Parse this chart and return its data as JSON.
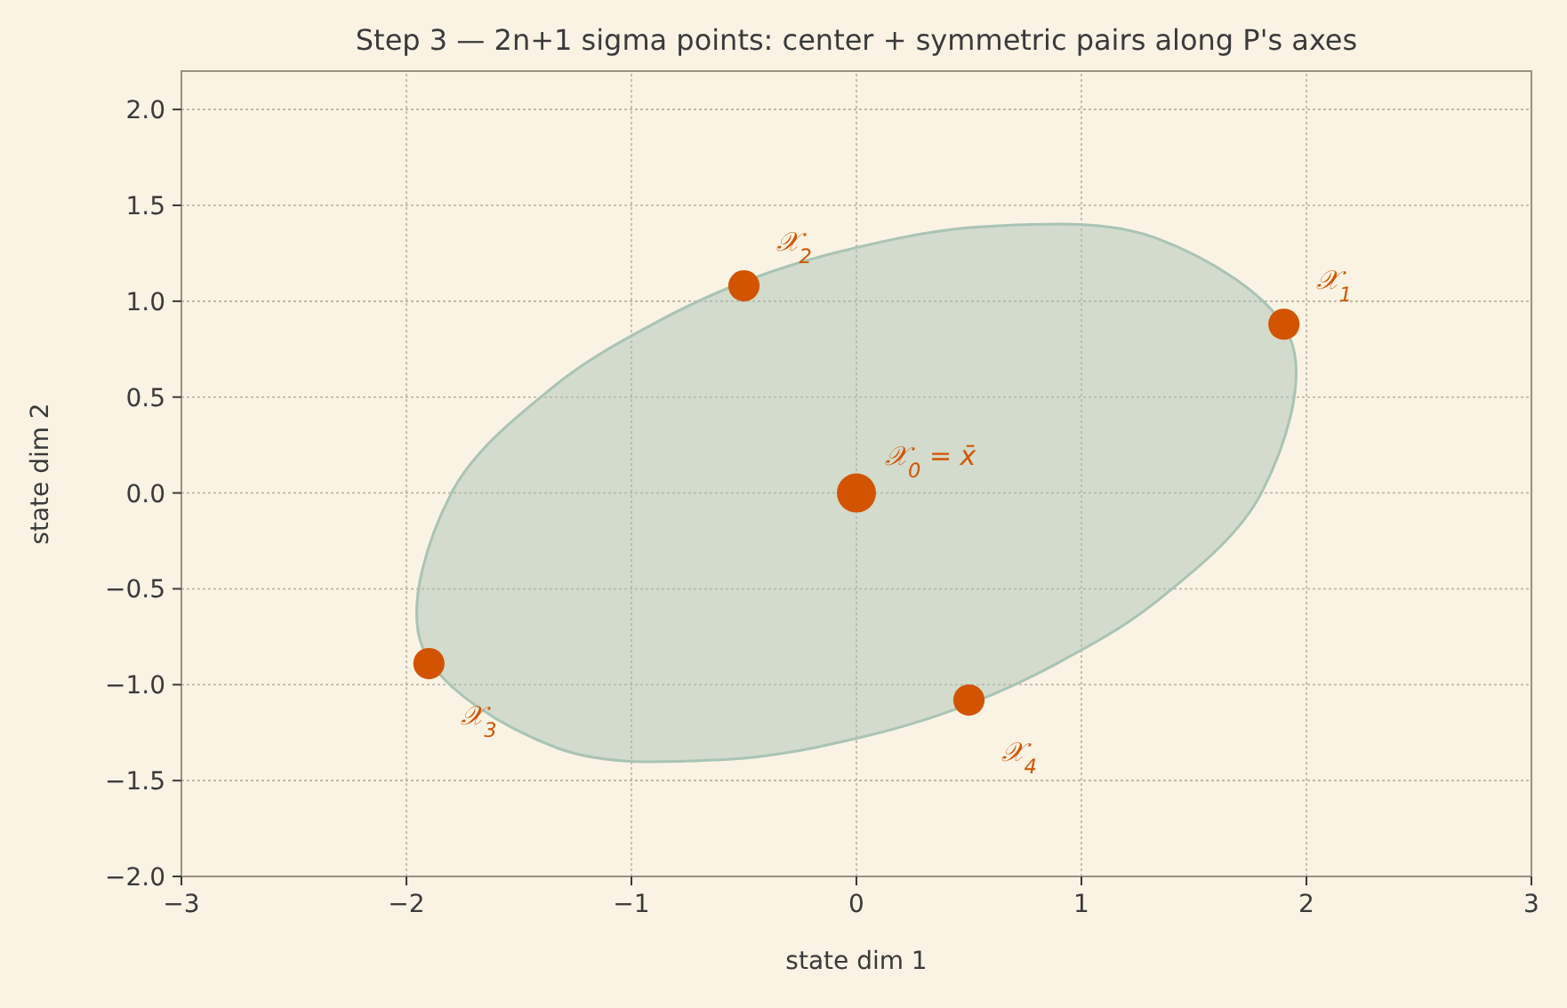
{
  "chart_data": {
    "type": "scatter",
    "title": "Step 3 — 2n+1 sigma points: center + symmetric pairs along P's axes",
    "xlabel": "state dim 1",
    "ylabel": "state dim 2",
    "xlim": [
      -3,
      3
    ],
    "ylim": [
      -2,
      2.2
    ],
    "xticks": [
      {
        "value": -3,
        "label": "−3"
      },
      {
        "value": -2,
        "label": "−2"
      },
      {
        "value": -1,
        "label": "−1"
      },
      0,
      1,
      2,
      3
    ],
    "yticks": [
      {
        "value": -2,
        "label": "−2.0"
      },
      {
        "value": -1.5,
        "label": "−1.5"
      },
      {
        "value": -1,
        "label": "−1.0"
      },
      {
        "value": -0.5,
        "label": "−0.5"
      },
      {
        "value": 0,
        "label": "0.0"
      },
      {
        "value": 0.5,
        "label": "0.5"
      },
      {
        "value": 1,
        "label": "1.0"
      },
      {
        "value": 1.5,
        "label": "1.5"
      },
      {
        "value": 2,
        "label": "2.0"
      }
    ],
    "grid": true,
    "series": [
      {
        "type": "area",
        "color": "#a9c4b4",
        "x": [
          1.8,
          1.93,
          1.33,
          0.58,
          0,
          -0.46,
          -0.89,
          -1.34,
          -1.8,
          -1.93,
          -1.33,
          -0.58,
          0,
          0.46,
          0.89,
          1.34,
          1.8
        ],
        "values": [
          0,
          0.8,
          1.33,
          1.39,
          1.28,
          1.12,
          0.89,
          0.56,
          0,
          -0.8,
          -1.33,
          -1.39,
          -1.28,
          -1.12,
          -0.89,
          -0.56,
          0
        ]
      },
      {
        "type": "bubble",
        "color": "#d35400",
        "x": [
          0,
          1.9,
          -0.5,
          -1.9,
          0.5
        ],
        "values": [
          0,
          0.88,
          1.08,
          -0.89,
          -1.08
        ],
        "sizes": [
          1,
          0.64,
          0.64,
          0.64,
          0.64
        ]
      }
    ],
    "annotations": [
      {
        "text": "𝒳$_{0}$ = x̄",
        "x": 0,
        "y": 0
      },
      {
        "text": "𝒳$_{1}$",
        "x": 1.9,
        "y": 0.88
      },
      {
        "text": "𝒳$_{2}$",
        "x": -0.5,
        "y": 1.08
      },
      {
        "text": "𝒳$_{3}$",
        "x": -1.9,
        "y": -0.89
      },
      {
        "text": "𝒳$_{4}$",
        "x": 0.5,
        "y": -1.08
      }
    ]
  }
}
